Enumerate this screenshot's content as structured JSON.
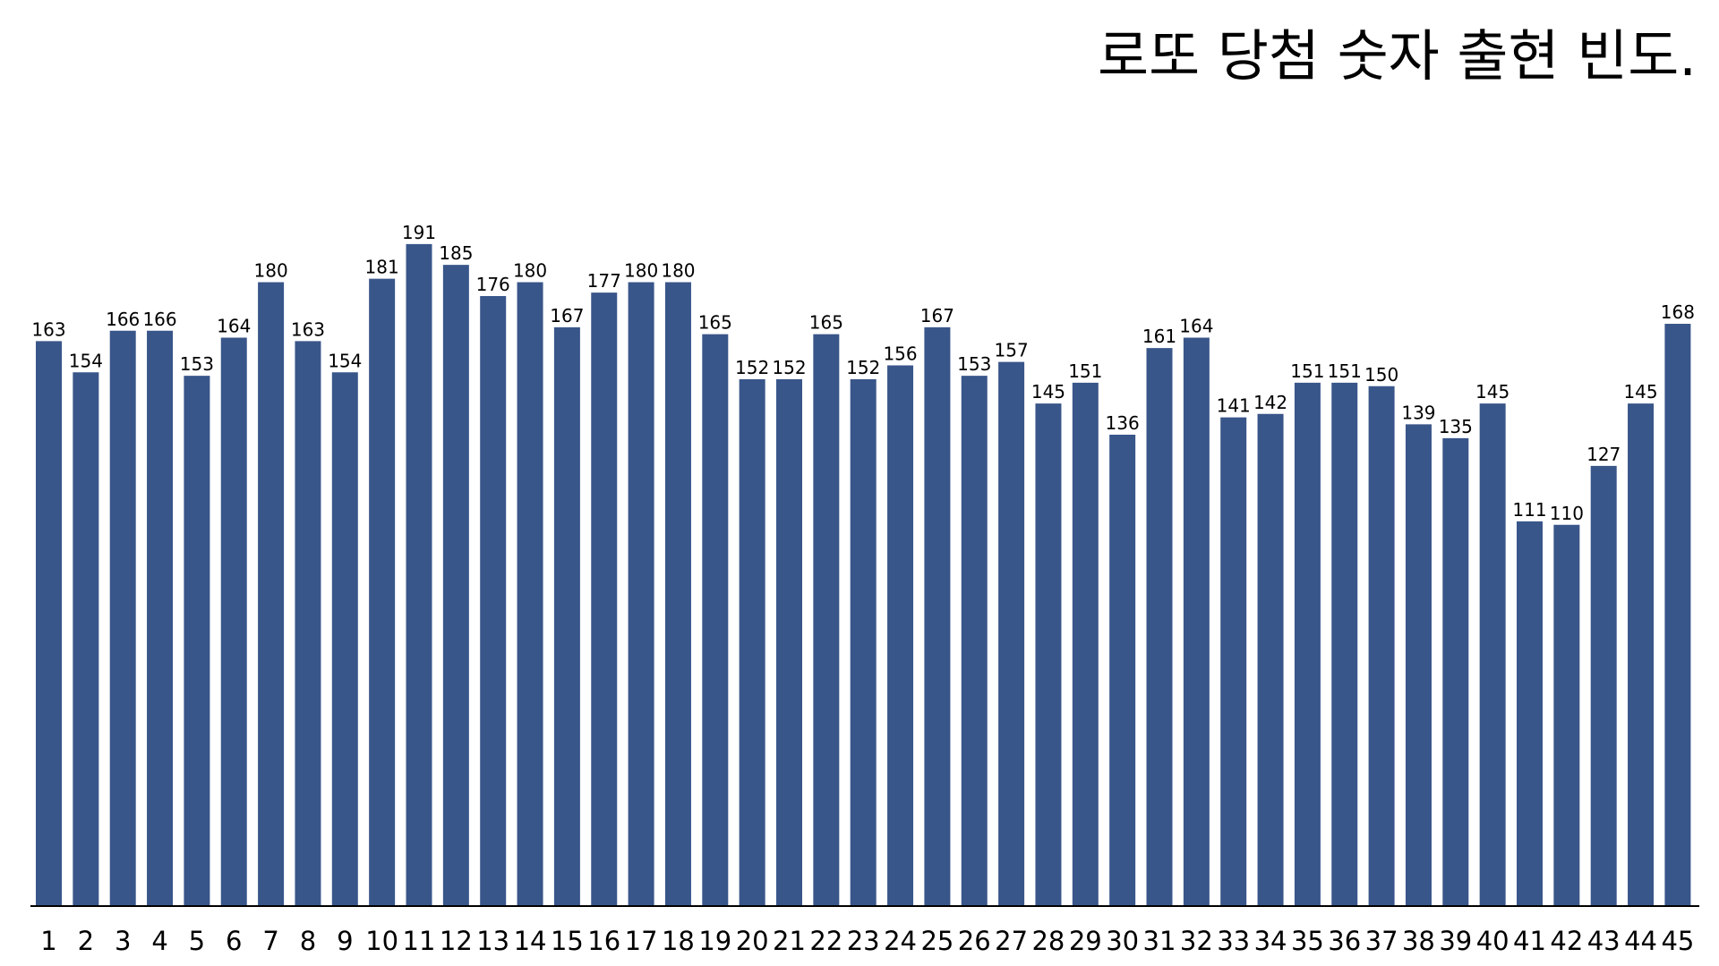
{
  "chart_data": {
    "type": "bar",
    "title": "로또 당첨 숫자 출현 빈도.",
    "xlabel": "",
    "ylabel": "",
    "ylim": [
      0,
      200
    ],
    "grid": false,
    "legend": "none",
    "bar_color": "#39568A",
    "axis_color": "#000000",
    "categories": [
      "1",
      "2",
      "3",
      "4",
      "5",
      "6",
      "7",
      "8",
      "9",
      "10",
      "11",
      "12",
      "13",
      "14",
      "15",
      "16",
      "17",
      "18",
      "19",
      "20",
      "21",
      "22",
      "23",
      "24",
      "25",
      "26",
      "27",
      "28",
      "29",
      "30",
      "31",
      "32",
      "33",
      "34",
      "35",
      "36",
      "37",
      "38",
      "39",
      "40",
      "41",
      "42",
      "43",
      "44",
      "45"
    ],
    "values": [
      163,
      154,
      166,
      166,
      153,
      164,
      180,
      163,
      154,
      181,
      191,
      185,
      176,
      180,
      167,
      177,
      180,
      180,
      165,
      152,
      152,
      165,
      152,
      156,
      167,
      153,
      157,
      145,
      151,
      136,
      161,
      164,
      141,
      142,
      151,
      151,
      150,
      139,
      135,
      145,
      111,
      110,
      127,
      145,
      168
    ]
  }
}
